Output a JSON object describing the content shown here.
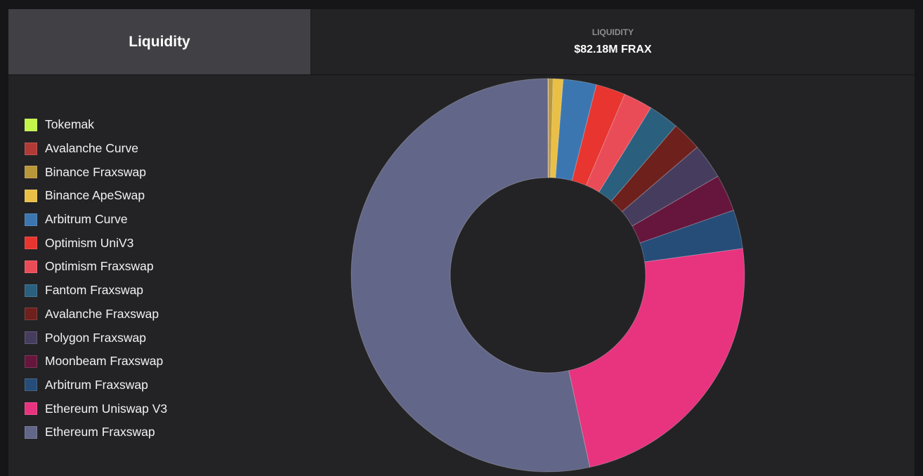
{
  "header": {
    "tab_label": "Liquidity",
    "stat_label": "LIQUIDITY",
    "stat_value": "$82.18M FRAX"
  },
  "chart_data": {
    "type": "pie",
    "style": "donut",
    "title": "Liquidity",
    "unit": "percent of total",
    "legend_placement": "left",
    "slices": [
      {
        "label": "Tokemak",
        "value": 0.06,
        "color": "#c3f54a"
      },
      {
        "label": "Avalanche Curve",
        "value": 0.08,
        "color": "#b03a36"
      },
      {
        "label": "Binance Fraxswap",
        "value": 0.28,
        "color": "#b8963a"
      },
      {
        "label": "Binance ApeSwap",
        "value": 0.83,
        "color": "#e9bf46"
      },
      {
        "label": "Arbitrum Curve",
        "value": 2.72,
        "color": "#3b76b0"
      },
      {
        "label": "Optimism UniV3",
        "value": 2.42,
        "color": "#e8352f"
      },
      {
        "label": "Optimism Fraxswap",
        "value": 2.39,
        "color": "#ea4c57"
      },
      {
        "label": "Fantom Fraxswap",
        "value": 2.5,
        "color": "#2a5f7e"
      },
      {
        "label": "Avalanche Fraxswap",
        "value": 2.44,
        "color": "#6e201d"
      },
      {
        "label": "Polygon Fraxswap",
        "value": 2.89,
        "color": "#463d5e"
      },
      {
        "label": "Moonbeam Fraxswap",
        "value": 3.03,
        "color": "#66163c"
      },
      {
        "label": "Arbitrum Fraxswap",
        "value": 3.19,
        "color": "#264c78"
      },
      {
        "label": "Ethereum Uniswap V3",
        "value": 23.75,
        "color": "#e8337f"
      },
      {
        "label": "Ethereum Fraxswap",
        "value": 53.42,
        "color": "#626688"
      }
    ]
  }
}
